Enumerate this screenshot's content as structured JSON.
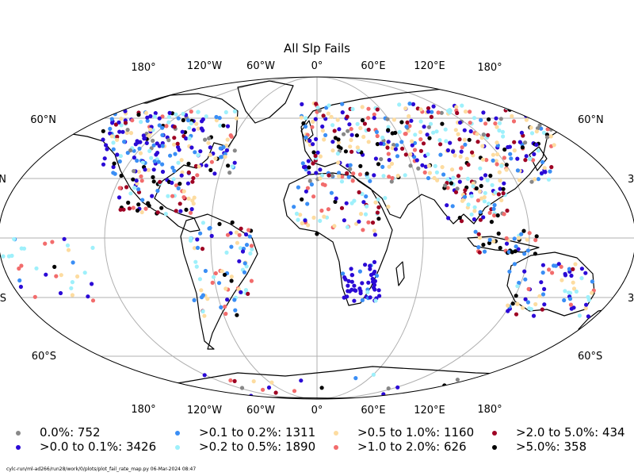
{
  "title": "All Slp Fails",
  "top_lon_labels": [
    "180°",
    "120°W",
    "60°W",
    "0°",
    "60°E",
    "120°E",
    "180°"
  ],
  "bottom_lon_labels": [
    "180°",
    "120°W",
    "60°W",
    "0°",
    "60°E",
    "120°E",
    "180°"
  ],
  "left_lat_labels": [
    "60°N",
    "N",
    "",
    "S",
    "60°S"
  ],
  "right_lat_labels": [
    "60°N",
    "3",
    "",
    "3",
    "60°S"
  ],
  "legend": [
    {
      "label": "0.0%: 752",
      "color": "#888888"
    },
    {
      "label": ">0.0 to 0.1%: 3426",
      "color": "#2b0ad6"
    },
    {
      "label": ">0.1 to 0.2%: 1311",
      "color": "#3a8ef5"
    },
    {
      "label": ">0.2 to 0.5%: 1890",
      "color": "#9ef0fb"
    },
    {
      "label": ">0.5 to 1.0%: 1160",
      "color": "#fddca0"
    },
    {
      "label": ">1.0 to 2.0%: 626",
      "color": "#f26c6c"
    },
    {
      "label": ">2.0 to 5.0%: 434",
      "color": "#9e0023"
    },
    {
      "label": ">5.0%: 358",
      "color": "#000000"
    }
  ],
  "footer": "cylc-run/ml-ad266/run28/work/0/plots/plot_fail_rate_map.py   06-Mar-2024 08:47",
  "map": {
    "projection": "Robinson",
    "graticule_lon_step_deg": 60,
    "graticule_lat_step_deg": 30,
    "graticule_color": "#b0b0b0",
    "coastline_color": "#000000"
  }
}
